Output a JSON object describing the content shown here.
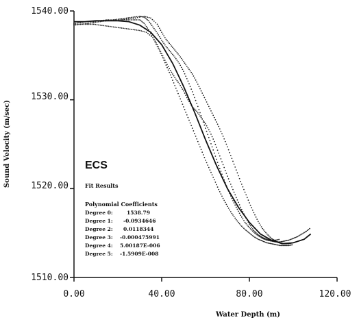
{
  "chart_data": {
    "type": "scatter",
    "title": "",
    "xlabel": "Water Depth (m)",
    "ylabel": "Sound Velocity (m/sec)",
    "xlim": [
      0,
      120
    ],
    "ylim": [
      1510,
      1540
    ],
    "x_ticks": [
      "0.00",
      "40.00",
      "80.00",
      "120.00"
    ],
    "y_ticks": [
      "1510.00",
      "1520.00",
      "1530.00",
      "1540.00"
    ],
    "grid": false,
    "annotation": {
      "label": "ECS",
      "fit_heading": "Fit Results",
      "coef_heading": "Polynomial Coefficients",
      "coefficients": [
        {
          "label": "Degree 0:",
          "value": "1538.79"
        },
        {
          "label": "Degree 1:",
          "value": "-0.0934646"
        },
        {
          "label": "Degree 2:",
          "value": "0.0118344"
        },
        {
          "label": "Degree 3:",
          "value": "-0.000475991"
        },
        {
          "label": "Degree 4:",
          "value": "5.00187E-006"
        },
        {
          "label": "Degree 5:",
          "value": "-1.5909E-008"
        }
      ]
    },
    "series": [
      {
        "kind": "points",
        "values": [
          [
            0,
            1538.6
          ],
          [
            3,
            1538.7
          ],
          [
            6,
            1538.8
          ],
          [
            9,
            1538.8
          ],
          [
            12,
            1538.9
          ],
          [
            15,
            1539.0
          ],
          [
            18,
            1539.0
          ],
          [
            21,
            1539.0
          ],
          [
            24,
            1539.0
          ],
          [
            27,
            1539.0
          ],
          [
            30,
            1539.0
          ],
          [
            32,
            1538.6
          ],
          [
            34,
            1537.9
          ],
          [
            36,
            1537.0
          ],
          [
            38,
            1536.0
          ],
          [
            40,
            1535.0
          ],
          [
            42,
            1533.9
          ],
          [
            44,
            1532.8
          ],
          [
            46,
            1531.6
          ],
          [
            48,
            1530.4
          ],
          [
            50,
            1529.2
          ],
          [
            52,
            1528.0
          ],
          [
            54,
            1526.8
          ],
          [
            56,
            1525.6
          ],
          [
            58,
            1524.4
          ],
          [
            60,
            1523.2
          ],
          [
            62,
            1522.1
          ],
          [
            64,
            1521.0
          ],
          [
            66,
            1519.9
          ],
          [
            68,
            1518.9
          ],
          [
            70,
            1518.0
          ],
          [
            72,
            1517.2
          ],
          [
            74,
            1516.5
          ],
          [
            76,
            1515.9
          ],
          [
            78,
            1515.4
          ],
          [
            80,
            1515.0
          ],
          [
            82,
            1514.6
          ],
          [
            84,
            1514.3
          ],
          [
            86,
            1514.1
          ],
          [
            88,
            1513.9
          ],
          [
            90,
            1513.8
          ],
          [
            92,
            1513.7
          ],
          [
            94,
            1513.6
          ],
          [
            96,
            1513.6
          ],
          [
            98,
            1513.6
          ],
          [
            100,
            1513.7
          ]
        ]
      },
      {
        "kind": "points",
        "values": [
          [
            0,
            1538.4
          ],
          [
            3,
            1538.5
          ],
          [
            6,
            1538.6
          ],
          [
            9,
            1538.7
          ],
          [
            12,
            1538.8
          ],
          [
            15,
            1538.9
          ],
          [
            18,
            1539.0
          ],
          [
            21,
            1539.1
          ],
          [
            24,
            1539.2
          ],
          [
            27,
            1539.3
          ],
          [
            30,
            1539.4
          ],
          [
            32,
            1539.3
          ],
          [
            34,
            1538.9
          ],
          [
            36,
            1538.2
          ],
          [
            38,
            1537.5
          ],
          [
            40,
            1536.7
          ],
          [
            42,
            1536.0
          ],
          [
            44,
            1535.4
          ],
          [
            46,
            1534.8
          ],
          [
            48,
            1534.1
          ],
          [
            50,
            1533.2
          ],
          [
            52,
            1532.1
          ],
          [
            54,
            1530.9
          ],
          [
            56,
            1529.6
          ],
          [
            58,
            1528.2
          ],
          [
            60,
            1526.8
          ],
          [
            62,
            1525.4
          ],
          [
            64,
            1524.0
          ],
          [
            66,
            1522.6
          ],
          [
            68,
            1521.3
          ],
          [
            70,
            1520.0
          ],
          [
            72,
            1518.9
          ],
          [
            74,
            1517.9
          ],
          [
            76,
            1517.0
          ],
          [
            78,
            1516.2
          ],
          [
            80,
            1515.6
          ],
          [
            82,
            1515.1
          ],
          [
            84,
            1514.7
          ],
          [
            86,
            1514.4
          ],
          [
            88,
            1514.2
          ],
          [
            90,
            1514.1
          ],
          [
            92,
            1514.0
          ],
          [
            94,
            1514.0
          ],
          [
            96,
            1514.1
          ],
          [
            98,
            1514.2
          ],
          [
            100,
            1514.4
          ],
          [
            102,
            1514.6
          ],
          [
            104,
            1514.9
          ],
          [
            106,
            1515.2
          ],
          [
            108,
            1515.6
          ]
        ]
      },
      {
        "kind": "points",
        "values": [
          [
            0,
            1538.5
          ],
          [
            3,
            1538.5
          ],
          [
            6,
            1538.5
          ],
          [
            9,
            1538.5
          ],
          [
            12,
            1538.4
          ],
          [
            15,
            1538.3
          ],
          [
            18,
            1538.2
          ],
          [
            21,
            1538.1
          ],
          [
            24,
            1538.0
          ],
          [
            27,
            1537.9
          ],
          [
            30,
            1537.8
          ],
          [
            33,
            1537.6
          ],
          [
            36,
            1537.0
          ],
          [
            38,
            1536.2
          ],
          [
            40,
            1535.2
          ],
          [
            42,
            1534.2
          ],
          [
            44,
            1533.3
          ],
          [
            46,
            1532.5
          ],
          [
            48,
            1531.8
          ],
          [
            50,
            1531.0
          ],
          [
            52,
            1530.0
          ],
          [
            54,
            1529.2
          ],
          [
            56,
            1528.7
          ],
          [
            58,
            1528.0
          ],
          [
            60,
            1527.3
          ],
          [
            62,
            1526.4
          ],
          [
            64,
            1525.3
          ],
          [
            66,
            1524.0
          ],
          [
            68,
            1522.7
          ],
          [
            70,
            1521.4
          ],
          [
            72,
            1520.2
          ],
          [
            74,
            1519.0
          ],
          [
            76,
            1517.9
          ],
          [
            78,
            1516.9
          ],
          [
            80,
            1516.0
          ],
          [
            82,
            1515.3
          ],
          [
            84,
            1514.8
          ],
          [
            86,
            1514.5
          ],
          [
            88,
            1514.3
          ],
          [
            90,
            1514.2
          ],
          [
            92,
            1514.2
          ],
          [
            94,
            1514.3
          ]
        ]
      },
      {
        "kind": "points",
        "values": [
          [
            20,
            1538.9
          ],
          [
            24,
            1539.1
          ],
          [
            28,
            1539.2
          ],
          [
            32,
            1539.4
          ],
          [
            35,
            1539.2
          ],
          [
            38,
            1538.5
          ],
          [
            40,
            1537.6
          ],
          [
            42,
            1536.8
          ],
          [
            44,
            1536.2
          ],
          [
            46,
            1535.6
          ],
          [
            48,
            1535.0
          ],
          [
            50,
            1534.3
          ],
          [
            52,
            1533.6
          ],
          [
            54,
            1532.9
          ],
          [
            56,
            1532.0
          ],
          [
            58,
            1531.0
          ],
          [
            60,
            1530.0
          ],
          [
            62,
            1529.0
          ],
          [
            64,
            1528.0
          ],
          [
            66,
            1527.0
          ],
          [
            68,
            1525.9
          ],
          [
            70,
            1524.7
          ],
          [
            72,
            1523.4
          ],
          [
            74,
            1522.1
          ],
          [
            76,
            1520.8
          ],
          [
            78,
            1519.6
          ],
          [
            80,
            1518.4
          ],
          [
            82,
            1517.3
          ],
          [
            84,
            1516.3
          ],
          [
            86,
            1515.5
          ],
          [
            88,
            1514.9
          ],
          [
            90,
            1514.4
          ],
          [
            92,
            1514.1
          ],
          [
            94,
            1513.9
          ],
          [
            96,
            1513.8
          ],
          [
            98,
            1513.8
          ],
          [
            100,
            1513.9
          ]
        ]
      },
      {
        "kind": "curve",
        "values": [
          [
            0,
            1538.8
          ],
          [
            5,
            1538.8
          ],
          [
            10,
            1538.9
          ],
          [
            15,
            1538.9
          ],
          [
            20,
            1538.9
          ],
          [
            25,
            1538.8
          ],
          [
            30,
            1538.4
          ],
          [
            35,
            1537.6
          ],
          [
            40,
            1536.2
          ],
          [
            45,
            1534.1
          ],
          [
            50,
            1531.5
          ],
          [
            55,
            1528.6
          ],
          [
            60,
            1525.5
          ],
          [
            65,
            1522.6
          ],
          [
            70,
            1520.0
          ],
          [
            75,
            1517.9
          ],
          [
            80,
            1516.2
          ],
          [
            85,
            1514.9
          ],
          [
            90,
            1514.2
          ],
          [
            95,
            1513.8
          ],
          [
            100,
            1513.9
          ],
          [
            105,
            1514.3
          ],
          [
            108,
            1514.9
          ]
        ]
      }
    ]
  }
}
